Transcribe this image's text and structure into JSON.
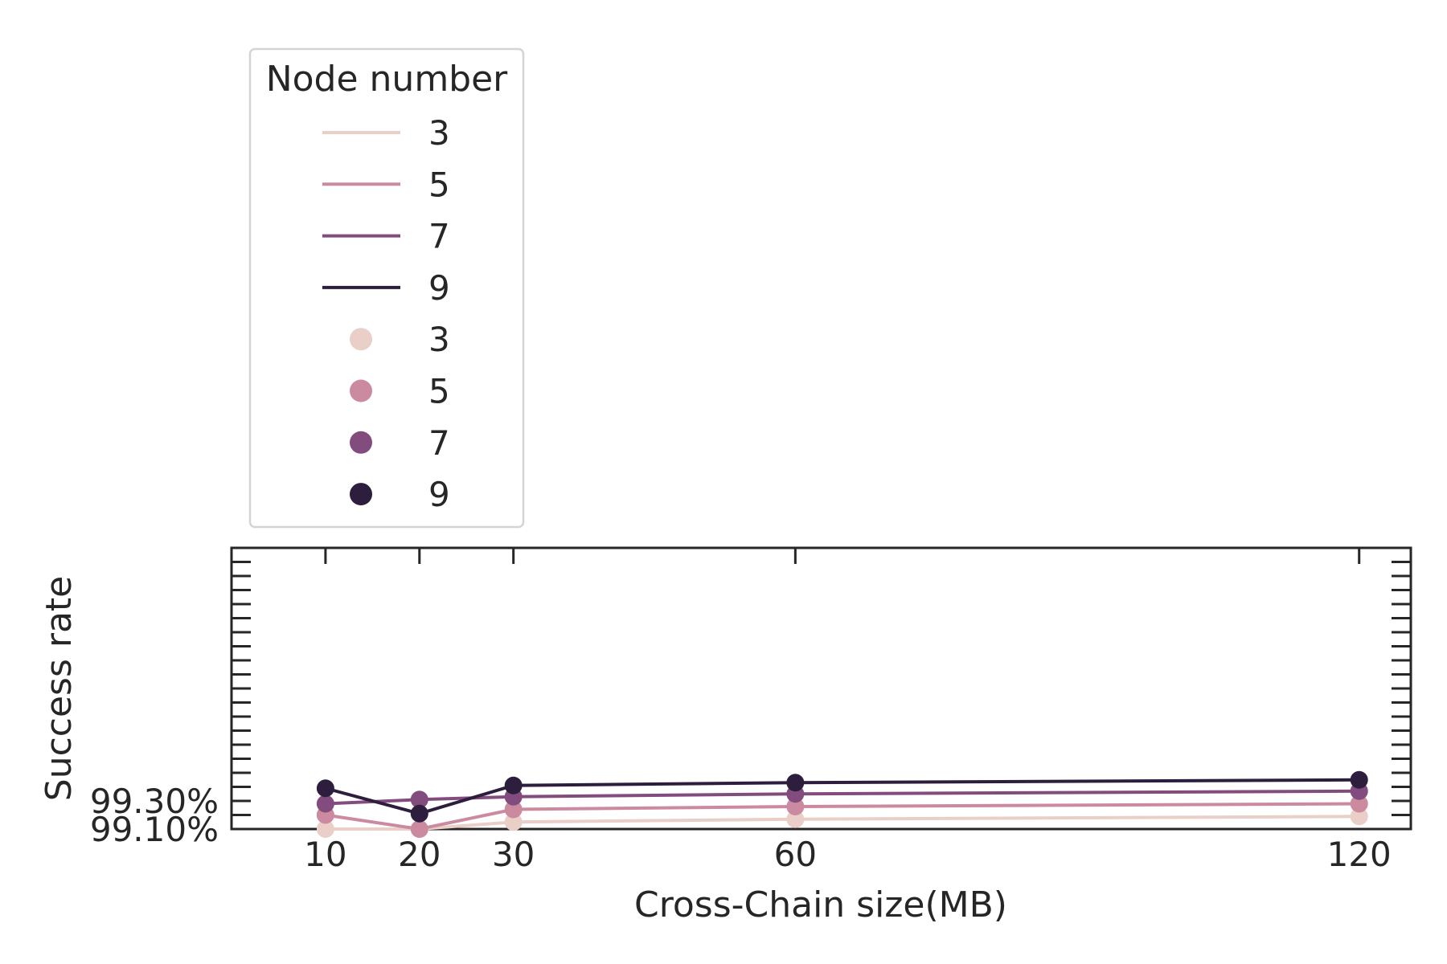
{
  "chart_data": {
    "type": "line",
    "xlabel": "Cross-Chain size(MB)",
    "ylabel": "Success rate",
    "x": [
      10,
      20,
      30,
      60,
      120
    ],
    "x_ticks": [
      10,
      20,
      30,
      60,
      120
    ],
    "y_tick_labels": [
      "99.10%",
      "99.30%"
    ],
    "y_tick_values": [
      99.1,
      99.3
    ],
    "xlim": [
      0,
      125.5
    ],
    "ylim": [
      99.1,
      101.1
    ],
    "grid": false,
    "legend": {
      "title": "Node number",
      "placement": "upper-left, outside above axes",
      "line_entries": [
        "3",
        "5",
        "7",
        "9"
      ],
      "marker_entries": [
        "3",
        "5",
        "7",
        "9"
      ]
    },
    "series": [
      {
        "name": "3",
        "color": "#e9cfc8",
        "values": [
          99.1,
          99.1,
          99.15,
          99.17,
          99.19
        ]
      },
      {
        "name": "5",
        "color": "#cc8aa0",
        "values": [
          99.2,
          99.1,
          99.24,
          99.26,
          99.28
        ]
      },
      {
        "name": "7",
        "color": "#834c7e",
        "values": [
          99.28,
          99.31,
          99.33,
          99.35,
          99.37
        ]
      },
      {
        "name": "9",
        "color": "#2d1e3e",
        "values": [
          99.39,
          99.21,
          99.41,
          99.43,
          99.45
        ]
      }
    ]
  }
}
